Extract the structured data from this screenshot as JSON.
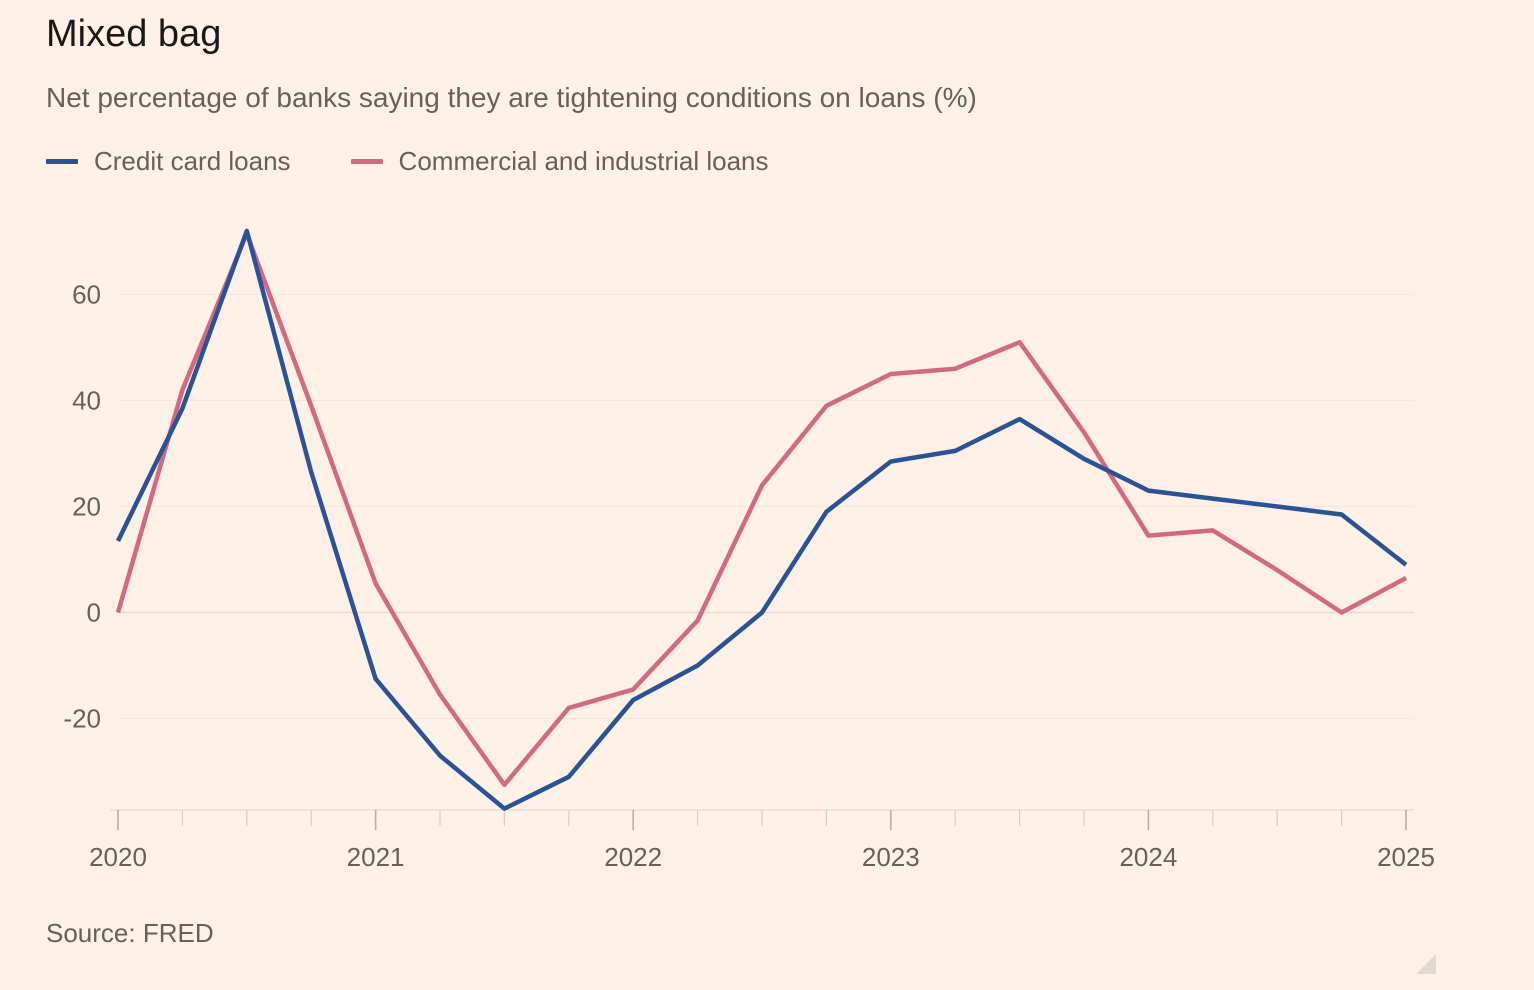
{
  "title": "Mixed bag",
  "subtitle": "Net percentage of banks saying they are tightening conditions on loans (%)",
  "source": "Source: FRED",
  "chart_data": {
    "type": "line",
    "x_ticks": [
      "2020",
      "2021",
      "2022",
      "2023",
      "2024",
      "2025"
    ],
    "y_ticks": [
      60,
      40,
      20,
      0,
      -20
    ],
    "y_tick_labels": [
      "60",
      "40",
      "20",
      "0",
      "-20"
    ],
    "ylim": [
      -37,
      72
    ],
    "legend_position": "top-left",
    "grid": "horizontal",
    "series": [
      {
        "name": "Credit card loans",
        "color": "#2a5296",
        "x": [
          2020.0,
          2020.25,
          2020.5,
          2020.75,
          2021.0,
          2021.25,
          2021.5,
          2021.75,
          2022.0,
          2022.25,
          2022.5,
          2022.75,
          2023.0,
          2023.25,
          2023.5,
          2023.75,
          2024.0,
          2024.25,
          2024.5,
          2024.75,
          2025.0
        ],
        "values": [
          13.5,
          38.5,
          72.0,
          26.5,
          -12.5,
          -27.0,
          -37.0,
          -31.0,
          -16.5,
          -10.0,
          0.0,
          19.0,
          28.5,
          30.5,
          36.5,
          29.0,
          23.0,
          21.5,
          20.0,
          18.5,
          9.0
        ]
      },
      {
        "name": "Commercial and industrial loans",
        "color": "#d3697f",
        "x": [
          2020.0,
          2020.25,
          2020.5,
          2020.75,
          2021.0,
          2021.25,
          2021.5,
          2021.75,
          2022.0,
          2022.25,
          2022.5,
          2022.75,
          2023.0,
          2023.25,
          2023.5,
          2023.75,
          2024.0,
          2024.25,
          2024.5,
          2024.75,
          2025.0
        ],
        "values": [
          0.0,
          42.0,
          71.5,
          39.0,
          5.5,
          -15.5,
          -32.5,
          -18.0,
          -14.5,
          -1.5,
          24.0,
          39.0,
          45.0,
          46.0,
          51.0,
          34.0,
          14.5,
          15.5,
          8.0,
          0.0,
          6.5
        ]
      }
    ]
  }
}
